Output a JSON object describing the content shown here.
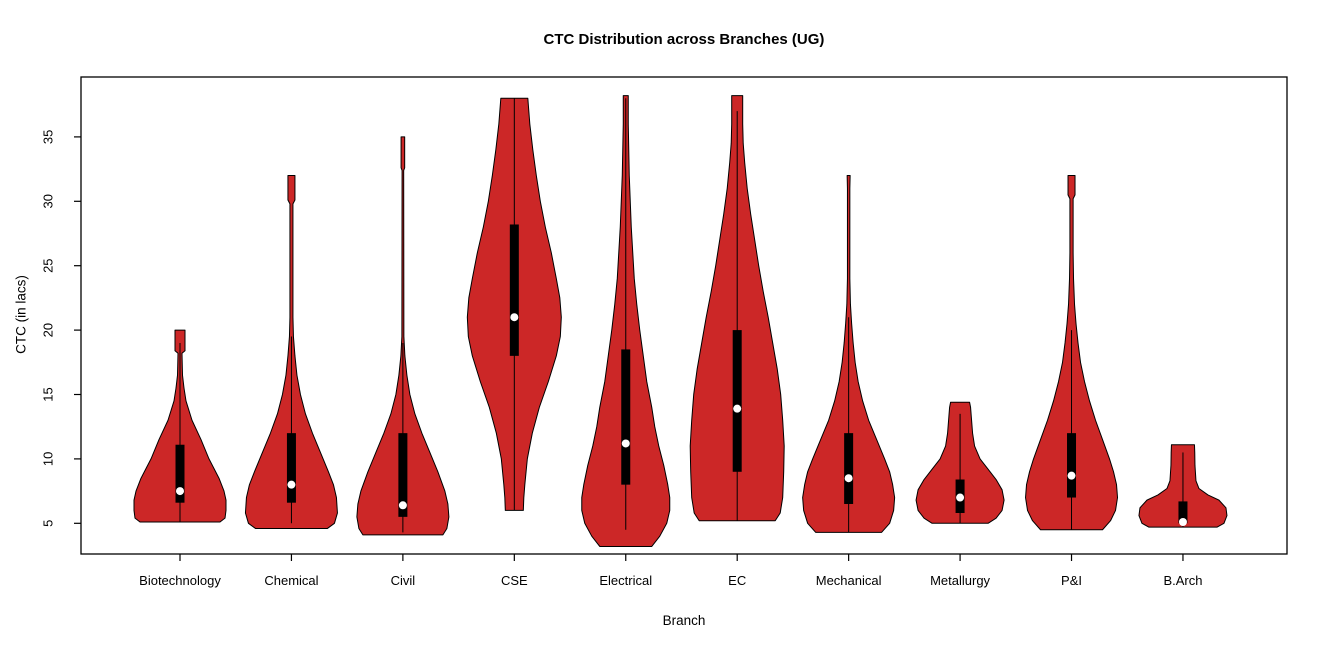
{
  "chart_data": {
    "type": "violin",
    "title": "CTC Distribution across Branches (UG)",
    "xlabel": "Branch",
    "ylabel": "CTC (in lacs)",
    "ylim": [
      2.6,
      39.7
    ],
    "yticks": [
      5,
      10,
      15,
      20,
      25,
      30,
      35
    ],
    "grid": false,
    "fill_color": "#CC2727",
    "stroke_color": "#000000",
    "box_color": "#000000",
    "median_dot_color": "#FFFFFF",
    "series": [
      {
        "name": "Biotechnology",
        "median": 7.5,
        "q1": 6.6,
        "q3": 11.1,
        "range": [
          5.1,
          20
        ],
        "line": [
          5.1,
          19
        ],
        "profile": [
          [
            5.1,
            40
          ],
          [
            5.4,
            45
          ],
          [
            6,
            46
          ],
          [
            6.8,
            46
          ],
          [
            7.5,
            44
          ],
          [
            8.5,
            39
          ],
          [
            10,
            29
          ],
          [
            11.5,
            21
          ],
          [
            13,
            12
          ],
          [
            14.5,
            6
          ],
          [
            15.5,
            4
          ],
          [
            16.5,
            2.5
          ],
          [
            18.2,
            2
          ],
          [
            18.4,
            5
          ],
          [
            20,
            5
          ]
        ]
      },
      {
        "name": "Chemical",
        "median": 8,
        "q1": 6.6,
        "q3": 12,
        "range": [
          4.6,
          32
        ],
        "line": [
          5,
          19.5
        ],
        "profile": [
          [
            4.6,
            36
          ],
          [
            5,
            43
          ],
          [
            5.8,
            46
          ],
          [
            7,
            45
          ],
          [
            8,
            42
          ],
          [
            9,
            37
          ],
          [
            10.5,
            29
          ],
          [
            12,
            21
          ],
          [
            13.5,
            14
          ],
          [
            15,
            9
          ],
          [
            16.5,
            5.5
          ],
          [
            18,
            3.5
          ],
          [
            19.5,
            2
          ],
          [
            21,
            1.5
          ],
          [
            29.8,
            1.5
          ],
          [
            30.1,
            3.5
          ],
          [
            32,
            3.5
          ]
        ]
      },
      {
        "name": "Civil",
        "median": 6.4,
        "q1": 5.5,
        "q3": 12,
        "range": [
          4.1,
          35
        ],
        "line": [
          4.3,
          19
        ],
        "profile": [
          [
            4.1,
            40
          ],
          [
            4.6,
            44
          ],
          [
            5.5,
            46
          ],
          [
            6.5,
            45
          ],
          [
            7.5,
            42
          ],
          [
            9,
            35
          ],
          [
            10.5,
            27
          ],
          [
            12,
            19
          ],
          [
            13.5,
            12
          ],
          [
            15,
            7
          ],
          [
            16.5,
            4
          ],
          [
            18,
            2
          ],
          [
            19.5,
            1
          ],
          [
            32.4,
            0.8
          ],
          [
            32.6,
            1.8
          ],
          [
            35,
            1.8
          ]
        ]
      },
      {
        "name": "CSE",
        "median": 21,
        "q1": 18,
        "q3": 28.2,
        "range": [
          6,
          38
        ],
        "line": [
          6,
          38
        ],
        "profile": [
          [
            6,
            9
          ],
          [
            7,
            9.5
          ],
          [
            8,
            10.5
          ],
          [
            10,
            13
          ],
          [
            12,
            18
          ],
          [
            14,
            25
          ],
          [
            16,
            34
          ],
          [
            18,
            42
          ],
          [
            19.5,
            46
          ],
          [
            21,
            47
          ],
          [
            22.5,
            45.5
          ],
          [
            24,
            42
          ],
          [
            26,
            37
          ],
          [
            28,
            31
          ],
          [
            30,
            26
          ],
          [
            32,
            22
          ],
          [
            34,
            18.5
          ],
          [
            36,
            15.5
          ],
          [
            38,
            13.5
          ]
        ]
      },
      {
        "name": "Electrical",
        "median": 11.2,
        "q1": 8,
        "q3": 18.5,
        "range": [
          3.2,
          38.2
        ],
        "line": [
          4.5,
          38
        ],
        "profile": [
          [
            3.2,
            26
          ],
          [
            4,
            34
          ],
          [
            5,
            41
          ],
          [
            6,
            44
          ],
          [
            7,
            44
          ],
          [
            8,
            42
          ],
          [
            9.5,
            38
          ],
          [
            11,
            33
          ],
          [
            12.5,
            29
          ],
          [
            14,
            26
          ],
          [
            16,
            21
          ],
          [
            18,
            17.5
          ],
          [
            20,
            14
          ],
          [
            22,
            11
          ],
          [
            24,
            8.5
          ],
          [
            26,
            7
          ],
          [
            28,
            5.5
          ],
          [
            30,
            4.5
          ],
          [
            32,
            3.5
          ],
          [
            34,
            3
          ],
          [
            36,
            2.5
          ],
          [
            38.2,
            2.5
          ]
        ]
      },
      {
        "name": "EC",
        "median": 13.9,
        "q1": 9,
        "q3": 20,
        "range": [
          5.2,
          38.2
        ],
        "line": [
          5.2,
          37
        ],
        "profile": [
          [
            5.2,
            38
          ],
          [
            5.8,
            43
          ],
          [
            7,
            45.5
          ],
          [
            9,
            46.5
          ],
          [
            11,
            47
          ],
          [
            13,
            45.5
          ],
          [
            15,
            43.5
          ],
          [
            17,
            40
          ],
          [
            19,
            35.5
          ],
          [
            21,
            31
          ],
          [
            23,
            26
          ],
          [
            25,
            21.5
          ],
          [
            27,
            17.5
          ],
          [
            29,
            13.5
          ],
          [
            31,
            10
          ],
          [
            33,
            7.5
          ],
          [
            34.5,
            6
          ],
          [
            36,
            5.5
          ],
          [
            38.2,
            5.5
          ]
        ]
      },
      {
        "name": "Mechanical",
        "median": 8.5,
        "q1": 6.5,
        "q3": 12,
        "range": [
          4.3,
          32
        ],
        "line": [
          4.3,
          21
        ],
        "profile": [
          [
            4.3,
            33
          ],
          [
            5,
            41
          ],
          [
            6,
            45
          ],
          [
            7,
            46
          ],
          [
            8,
            44
          ],
          [
            9,
            41
          ],
          [
            10,
            36
          ],
          [
            11.5,
            28
          ],
          [
            13,
            20
          ],
          [
            14.5,
            14
          ],
          [
            16,
            9.5
          ],
          [
            17.5,
            6.5
          ],
          [
            19,
            4.5
          ],
          [
            20.5,
            3
          ],
          [
            22,
            1.8
          ],
          [
            24,
            1.2
          ],
          [
            31,
            1.2
          ],
          [
            32,
            1.5
          ]
        ]
      },
      {
        "name": "Metallurgy",
        "median": 7,
        "q1": 5.8,
        "q3": 8.4,
        "range": [
          5,
          14.4
        ],
        "line": [
          5,
          13.5
        ],
        "profile": [
          [
            5,
            28
          ],
          [
            5.4,
            36
          ],
          [
            6,
            42
          ],
          [
            6.8,
            44
          ],
          [
            7.6,
            42
          ],
          [
            8.4,
            36
          ],
          [
            9.2,
            28
          ],
          [
            10,
            20
          ],
          [
            11,
            14.5
          ],
          [
            12,
            12.5
          ],
          [
            13,
            11.5
          ],
          [
            14,
            10.5
          ],
          [
            14.4,
            9.5
          ]
        ]
      },
      {
        "name": "P&I",
        "median": 8.7,
        "q1": 7,
        "q3": 12,
        "range": [
          4.5,
          32
        ],
        "line": [
          4.5,
          20
        ],
        "profile": [
          [
            4.5,
            31
          ],
          [
            5.2,
            39
          ],
          [
            6,
            44
          ],
          [
            7,
            46
          ],
          [
            8,
            45
          ],
          [
            9,
            42
          ],
          [
            10,
            38
          ],
          [
            11.5,
            31
          ],
          [
            13,
            24
          ],
          [
            14.5,
            18
          ],
          [
            16,
            13
          ],
          [
            17.5,
            9
          ],
          [
            19,
            6.5
          ],
          [
            20.5,
            4.5
          ],
          [
            22,
            3
          ],
          [
            24,
            2
          ],
          [
            26,
            1.6
          ],
          [
            30.2,
            1.6
          ],
          [
            30.5,
            3.5
          ],
          [
            32,
            3.5
          ]
        ]
      },
      {
        "name": "B.Arch",
        "median": 5.1,
        "q1": 5,
        "q3": 6.7,
        "range": [
          4.7,
          11.1
        ],
        "line": [
          4.7,
          10.5
        ],
        "profile": [
          [
            4.7,
            34
          ],
          [
            5,
            41
          ],
          [
            5.6,
            44
          ],
          [
            6.2,
            43
          ],
          [
            6.8,
            36
          ],
          [
            7.2,
            25
          ],
          [
            7.7,
            16
          ],
          [
            8.3,
            13
          ],
          [
            9.5,
            12
          ],
          [
            10.5,
            11.8
          ],
          [
            11.1,
            11.5
          ]
        ]
      }
    ]
  }
}
